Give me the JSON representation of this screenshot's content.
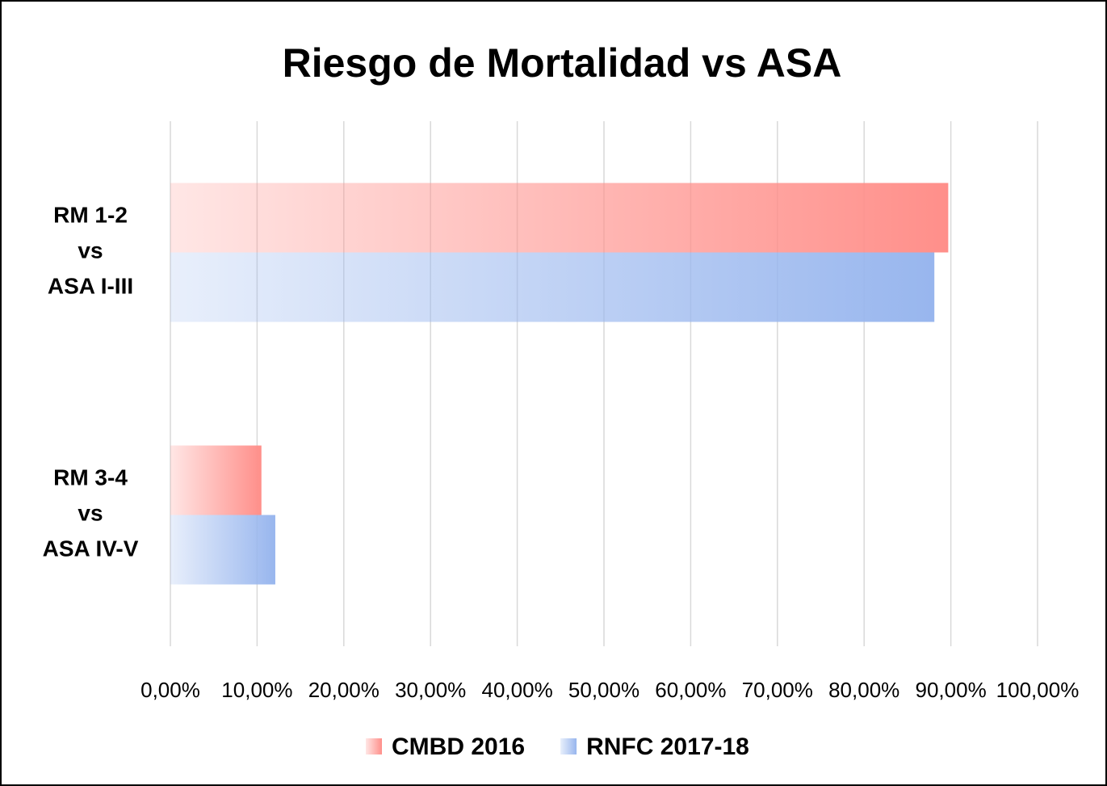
{
  "chart_data": {
    "type": "hbar",
    "title": "Riesgo de Mortalidad vs ASA",
    "categories": [
      "RM 1-2\nvs\nASA I-III",
      "RM 3-4\nvs\nASA IV-V"
    ],
    "series": [
      {
        "name": "CMBD 2016",
        "color": "#ff8f8a",
        "values": [
          89.7,
          10.5
        ]
      },
      {
        "name": "RNFC 2017-18",
        "color": "#98b6ee",
        "values": [
          88.1,
          12.1
        ]
      }
    ],
    "xlim": [
      0,
      100
    ],
    "xticks": [
      {
        "value": 0,
        "label": "0,00%"
      },
      {
        "value": 10,
        "label": "10,00%"
      },
      {
        "value": 20,
        "label": "20,00%"
      },
      {
        "value": 30,
        "label": "30,00%"
      },
      {
        "value": 40,
        "label": "40,00%"
      },
      {
        "value": 50,
        "label": "50,00%"
      },
      {
        "value": 60,
        "label": "60,00%"
      },
      {
        "value": 70,
        "label": "70,00%"
      },
      {
        "value": 80,
        "label": "80,00%"
      },
      {
        "value": 90,
        "label": "90,00%"
      },
      {
        "value": 100,
        "label": "100,00%"
      }
    ],
    "grid": true,
    "legend": "bottom"
  }
}
